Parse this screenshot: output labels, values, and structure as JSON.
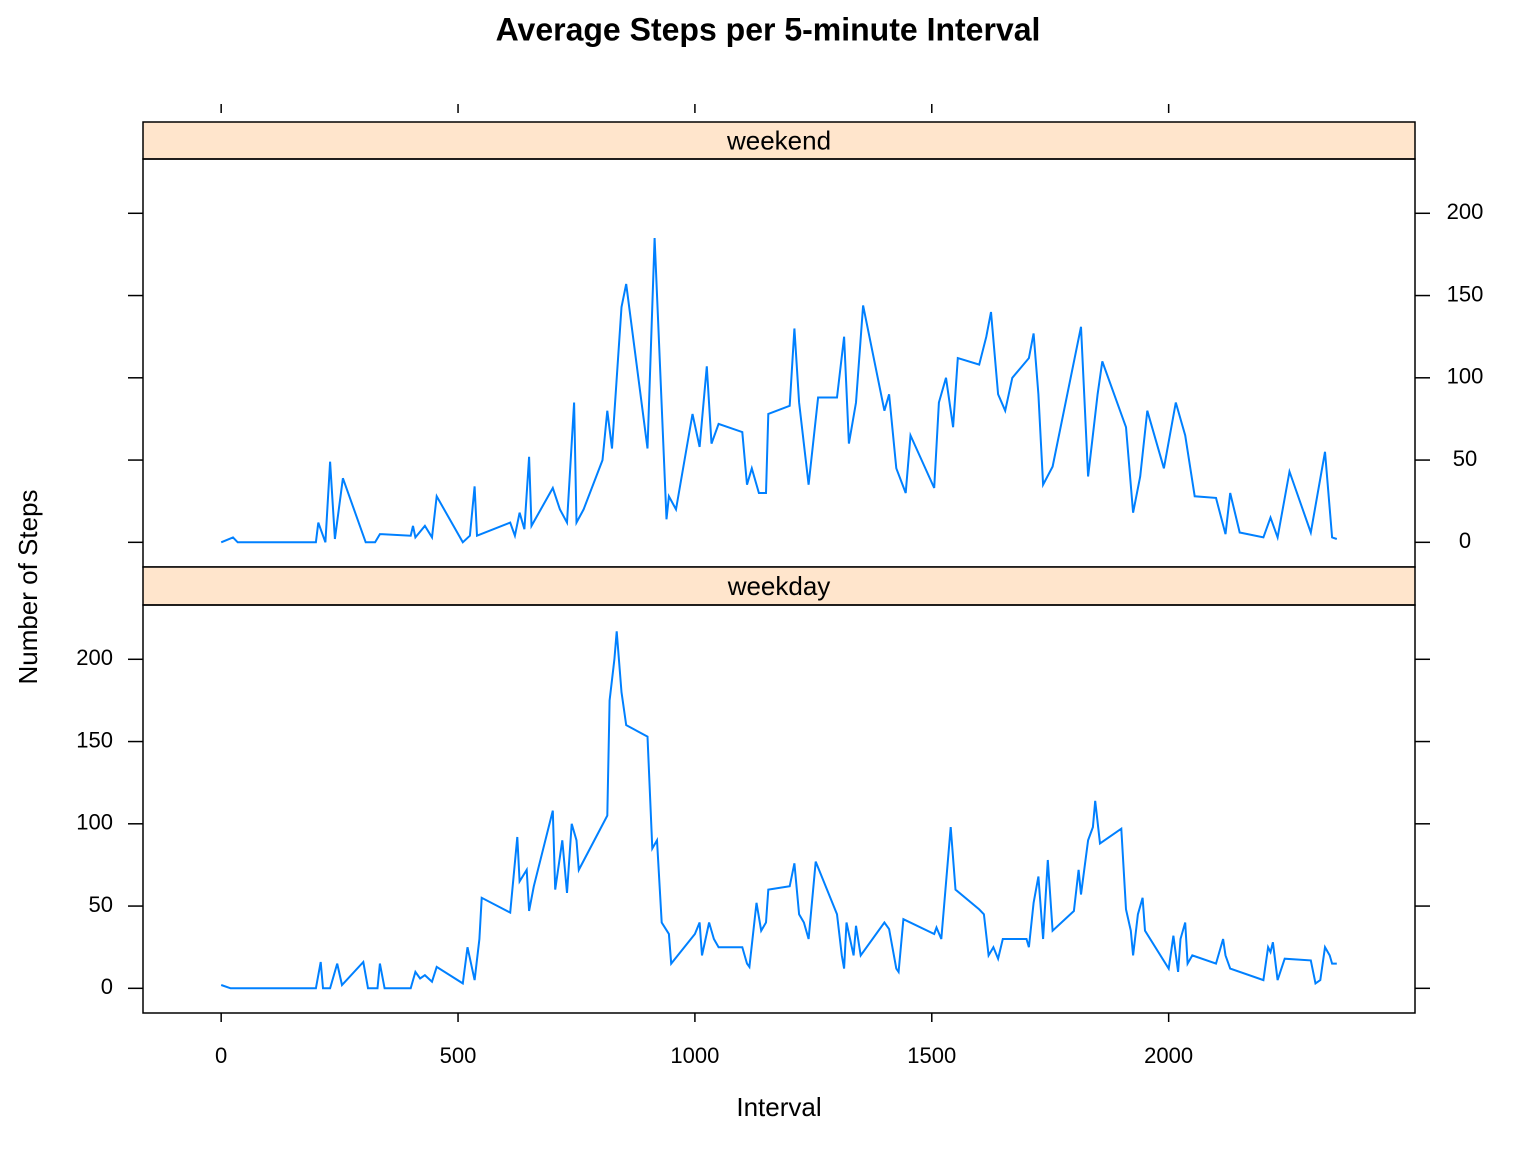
{
  "chart_data": {
    "type": "line",
    "title": "Average Steps per 5-minute Interval",
    "x_label": "Interval",
    "y_label": "Number of Steps",
    "color": "#0080ff",
    "xlim": [
      -165,
      2520
    ],
    "xticks": [
      0,
      500,
      1000,
      1500,
      2000
    ],
    "ylim": [
      -15,
      233
    ],
    "yticks": [
      0,
      50,
      100,
      150,
      200
    ],
    "panels": [
      {
        "strip": "weekend",
        "x": [
          0,
          25,
          35,
          200,
          205,
          220,
          230,
          240,
          257,
          305,
          325,
          335,
          400,
          405,
          410,
          430,
          445,
          455,
          510,
          525,
          535,
          540,
          610,
          620,
          630,
          640,
          650,
          655,
          700,
          715,
          730,
          745,
          750,
          765,
          805,
          815,
          825,
          845,
          855,
          900,
          915,
          940,
          945,
          960,
          995,
          1010,
          1025,
          1035,
          1050,
          1100,
          1110,
          1120,
          1135,
          1150,
          1155,
          1200,
          1210,
          1220,
          1240,
          1260,
          1300,
          1315,
          1325,
          1340,
          1355,
          1400,
          1410,
          1425,
          1445,
          1455,
          1505,
          1515,
          1530,
          1545,
          1555,
          1600,
          1615,
          1625,
          1640,
          1655,
          1670,
          1705,
          1715,
          1725,
          1735,
          1755,
          1815,
          1830,
          1850,
          1860,
          1910,
          1925,
          1940,
          1955,
          1990,
          2015,
          2035,
          2055,
          2100,
          2120,
          2130,
          2150,
          2200,
          2215,
          2230,
          2255,
          2300,
          2330,
          2345,
          2355
        ],
        "values": [
          0,
          3,
          0,
          0,
          12,
          0,
          49,
          2,
          39,
          0,
          0,
          5,
          4,
          10,
          3,
          10,
          3,
          28,
          0,
          4,
          34,
          4,
          12,
          4,
          18,
          8,
          52,
          10,
          33,
          20,
          12,
          85,
          12,
          20,
          50,
          80,
          57,
          143,
          157,
          57,
          185,
          14,
          28,
          20,
          78,
          58,
          107,
          60,
          72,
          67,
          35,
          45,
          30,
          30,
          78,
          83,
          130,
          85,
          35,
          88,
          88,
          125,
          60,
          85,
          144,
          80,
          90,
          45,
          30,
          65,
          33,
          85,
          100,
          70,
          112,
          108,
          125,
          140,
          90,
          80,
          100,
          112,
          127,
          90,
          35,
          46,
          131,
          40,
          90,
          110,
          70,
          18,
          40,
          80,
          45,
          85,
          65,
          28,
          27,
          5,
          30,
          6,
          3,
          15,
          3,
          43,
          6,
          55,
          3,
          2
        ]
      },
      {
        "strip": "weekday",
        "x": [
          0,
          20,
          200,
          210,
          215,
          230,
          245,
          255,
          300,
          310,
          330,
          335,
          345,
          400,
          410,
          420,
          430,
          445,
          455,
          510,
          520,
          535,
          545,
          550,
          610,
          625,
          630,
          645,
          650,
          660,
          700,
          705,
          720,
          730,
          740,
          750,
          755,
          815,
          820,
          830,
          835,
          845,
          855,
          900,
          910,
          920,
          930,
          945,
          950,
          1000,
          1010,
          1015,
          1030,
          1040,
          1050,
          1100,
          1110,
          1115,
          1130,
          1140,
          1150,
          1155,
          1200,
          1210,
          1220,
          1230,
          1240,
          1255,
          1300,
          1310,
          1315,
          1320,
          1335,
          1340,
          1350,
          1400,
          1410,
          1425,
          1430,
          1440,
          1505,
          1510,
          1520,
          1540,
          1550,
          1600,
          1610,
          1620,
          1630,
          1640,
          1650,
          1700,
          1705,
          1715,
          1725,
          1735,
          1745,
          1755,
          1800,
          1810,
          1815,
          1830,
          1840,
          1845,
          1855,
          1900,
          1910,
          1920,
          1925,
          1935,
          1945,
          1950,
          2000,
          2010,
          2020,
          2025,
          2035,
          2040,
          2050,
          2100,
          2115,
          2120,
          2130,
          2200,
          2210,
          2215,
          2220,
          2230,
          2245,
          2300,
          2310,
          2320,
          2330,
          2340,
          2345,
          2355
        ],
        "values": [
          2,
          0,
          0,
          16,
          0,
          0,
          15,
          2,
          16,
          0,
          0,
          15,
          0,
          0,
          10,
          6,
          8,
          4,
          13,
          3,
          25,
          5,
          30,
          55,
          46,
          92,
          65,
          72,
          47,
          62,
          108,
          60,
          90,
          58,
          100,
          90,
          72,
          105,
          175,
          200,
          217,
          180,
          160,
          153,
          85,
          90,
          40,
          33,
          15,
          33,
          40,
          20,
          40,
          30,
          25,
          25,
          15,
          13,
          52,
          35,
          40,
          60,
          62,
          76,
          45,
          40,
          30,
          77,
          45,
          20,
          12,
          40,
          20,
          38,
          20,
          40,
          36,
          12,
          10,
          42,
          33,
          37,
          30,
          98,
          60,
          48,
          45,
          20,
          25,
          18,
          30,
          30,
          25,
          52,
          68,
          30,
          78,
          35,
          47,
          72,
          57,
          90,
          98,
          114,
          88,
          97,
          48,
          35,
          20,
          45,
          55,
          35,
          12,
          32,
          10,
          30,
          40,
          15,
          20,
          15,
          30,
          20,
          12,
          5,
          25,
          22,
          28,
          5,
          18,
          17,
          3,
          5,
          25,
          20,
          15,
          15
        ]
      }
    ]
  }
}
